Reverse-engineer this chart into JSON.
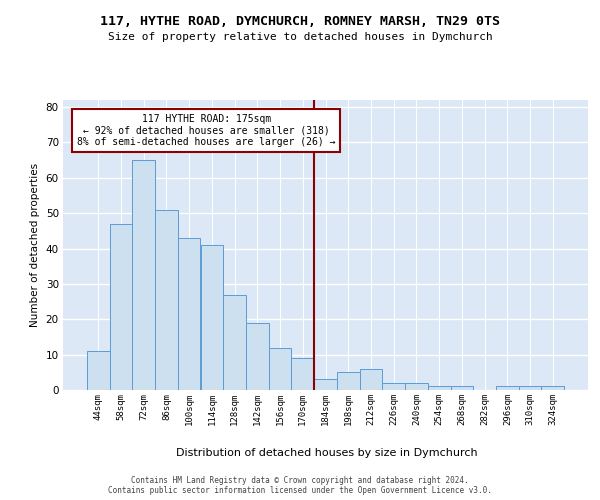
{
  "title": "117, HYTHE ROAD, DYMCHURCH, ROMNEY MARSH, TN29 0TS",
  "subtitle": "Size of property relative to detached houses in Dymchurch",
  "xlabel": "Distribution of detached houses by size in Dymchurch",
  "ylabel": "Number of detached properties",
  "bar_labels": [
    "44sqm",
    "58sqm",
    "72sqm",
    "86sqm",
    "100sqm",
    "114sqm",
    "128sqm",
    "142sqm",
    "156sqm",
    "170sqm",
    "184sqm",
    "198sqm",
    "212sqm",
    "226sqm",
    "240sqm",
    "254sqm",
    "268sqm",
    "282sqm",
    "296sqm",
    "310sqm",
    "324sqm"
  ],
  "bar_values": [
    11,
    47,
    65,
    51,
    43,
    41,
    27,
    19,
    12,
    9,
    3,
    5,
    6,
    2,
    2,
    1,
    1,
    0,
    1,
    1,
    1
  ],
  "bar_color": "#cce0f0",
  "bar_edge_color": "#5b9bd5",
  "bg_color": "#dce8f5",
  "grid_color": "#ffffff",
  "vline_x": 9.5,
  "vline_color": "#8b0000",
  "annotation_line1": "117 HYTHE ROAD: 175sqm",
  "annotation_line2": "← 92% of detached houses are smaller (318)",
  "annotation_line3": "8% of semi-detached houses are larger (26) →",
  "annotation_box_color": "#ffffff",
  "annotation_box_edge_color": "#8b0000",
  "ylim": [
    0,
    82
  ],
  "yticks": [
    0,
    10,
    20,
    30,
    40,
    50,
    60,
    70,
    80
  ],
  "footer1": "Contains HM Land Registry data © Crown copyright and database right 2024.",
  "footer2": "Contains public sector information licensed under the Open Government Licence v3.0."
}
